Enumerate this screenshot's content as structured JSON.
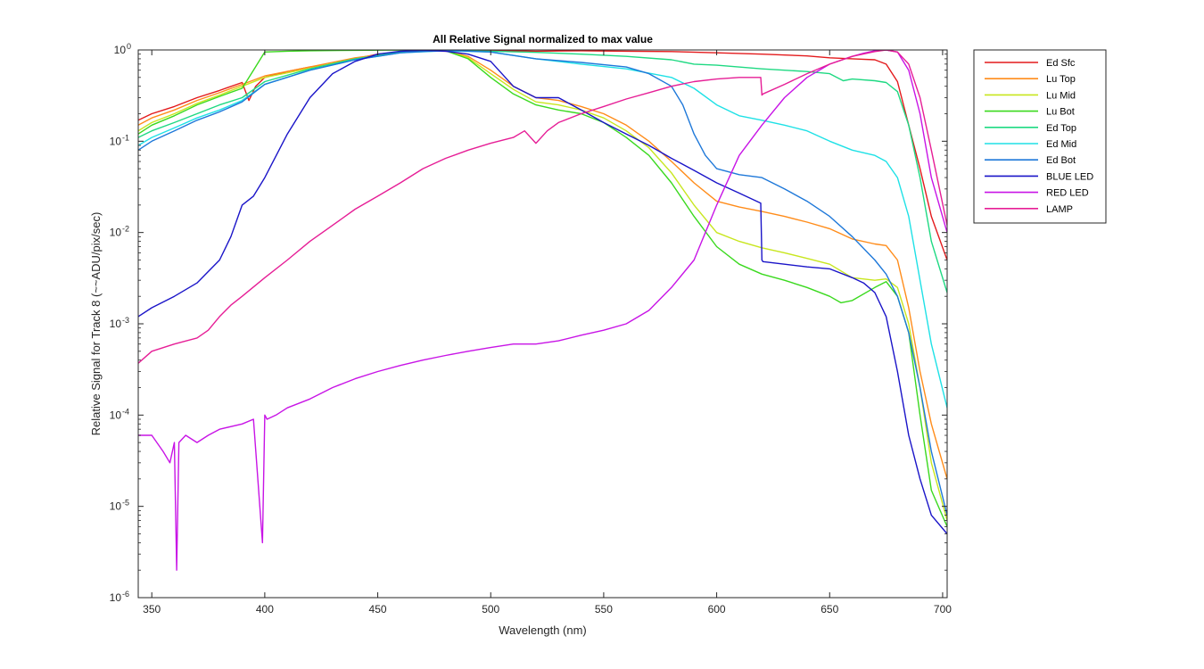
{
  "chart_data": {
    "type": "line",
    "title": "All Relative Signal normalized to max value",
    "xlabel": "Wavelength (nm)",
    "ylabel": "Relative Signal for Track 8 (~~ADU/pix/sec)",
    "xlim": [
      344,
      702
    ],
    "ylim": [
      1e-06,
      1
    ],
    "yscale": "log",
    "grid": false,
    "legend_position": "outside-right-top",
    "x_ticks": [
      350,
      400,
      450,
      500,
      550,
      600,
      650,
      700
    ],
    "y_ticks": [
      {
        "value": 1e-06,
        "mantissa": "10",
        "exp": "-6"
      },
      {
        "value": 1e-05,
        "mantissa": "10",
        "exp": "-5"
      },
      {
        "value": 0.0001,
        "mantissa": "10",
        "exp": "-4"
      },
      {
        "value": 0.001,
        "mantissa": "10",
        "exp": "-3"
      },
      {
        "value": 0.01,
        "mantissa": "10",
        "exp": "-2"
      },
      {
        "value": 0.1,
        "mantissa": "10",
        "exp": "-1"
      },
      {
        "value": 1,
        "mantissa": "10",
        "exp": "0"
      }
    ],
    "series": [
      {
        "name": "Ed Sfc",
        "color": "#e31a1c",
        "x": [
          344,
          350,
          360,
          370,
          380,
          390,
          393,
          396,
          400,
          410,
          420,
          430,
          440,
          450,
          460,
          470,
          480,
          490,
          500,
          520,
          540,
          560,
          580,
          600,
          620,
          640,
          650,
          660,
          670,
          675,
          680,
          685,
          690,
          695,
          702
        ],
        "y": [
          0.17,
          0.2,
          0.24,
          0.3,
          0.36,
          0.44,
          0.28,
          0.4,
          0.5,
          0.58,
          0.65,
          0.7,
          0.8,
          0.9,
          0.95,
          0.98,
          0.97,
          0.98,
          0.99,
          0.97,
          0.98,
          0.97,
          0.96,
          0.93,
          0.9,
          0.86,
          0.82,
          0.8,
          0.78,
          0.7,
          0.45,
          0.15,
          0.05,
          0.015,
          0.005
        ]
      },
      {
        "name": "Lu Top",
        "color": "#ff8c1a",
        "x": [
          344,
          350,
          360,
          370,
          380,
          390,
          400,
          420,
          440,
          460,
          480,
          490,
          500,
          510,
          520,
          530,
          540,
          550,
          560,
          570,
          580,
          590,
          600,
          610,
          620,
          630,
          640,
          650,
          660,
          670,
          675,
          680,
          685,
          690,
          695,
          702
        ],
        "y": [
          0.15,
          0.18,
          0.22,
          0.28,
          0.34,
          0.42,
          0.52,
          0.65,
          0.82,
          0.95,
          0.98,
          0.85,
          0.6,
          0.4,
          0.3,
          0.28,
          0.24,
          0.2,
          0.15,
          0.1,
          0.06,
          0.035,
          0.022,
          0.019,
          0.017,
          0.015,
          0.013,
          0.011,
          0.0085,
          0.0075,
          0.0072,
          0.005,
          0.0015,
          0.0003,
          8e-05,
          2e-05
        ]
      },
      {
        "name": "Lu Mid",
        "color": "#c8e61e",
        "x": [
          344,
          350,
          360,
          370,
          380,
          390,
          400,
          420,
          440,
          460,
          480,
          490,
          500,
          510,
          520,
          530,
          540,
          550,
          560,
          570,
          580,
          590,
          600,
          610,
          620,
          630,
          640,
          650,
          660,
          670,
          675,
          680,
          685,
          690,
          695,
          702
        ],
        "y": [
          0.13,
          0.16,
          0.2,
          0.26,
          0.32,
          0.4,
          0.5,
          0.63,
          0.8,
          0.95,
          0.98,
          0.82,
          0.55,
          0.37,
          0.27,
          0.25,
          0.22,
          0.18,
          0.13,
          0.085,
          0.045,
          0.02,
          0.01,
          0.008,
          0.0068,
          0.006,
          0.0052,
          0.0045,
          0.0032,
          0.003,
          0.0031,
          0.0025,
          0.001,
          0.0002,
          3e-05,
          7e-06
        ]
      },
      {
        "name": "Lu Bot",
        "color": "#3ad91e",
        "x": [
          344,
          350,
          360,
          370,
          380,
          390,
          395,
          400,
          410,
          420,
          440,
          460,
          480,
          490,
          500,
          510,
          520,
          530,
          540,
          550,
          560,
          570,
          580,
          590,
          600,
          610,
          620,
          630,
          640,
          650,
          655,
          660,
          670,
          675,
          680,
          685,
          690,
          695,
          702
        ],
        "y": [
          0.12,
          0.15,
          0.19,
          0.25,
          0.31,
          0.38,
          0.6,
          0.95,
          0.97,
          0.98,
          0.99,
          1.0,
          0.98,
          0.8,
          0.5,
          0.33,
          0.25,
          0.22,
          0.2,
          0.16,
          0.11,
          0.07,
          0.035,
          0.015,
          0.007,
          0.0045,
          0.0035,
          0.003,
          0.0025,
          0.002,
          0.0017,
          0.0018,
          0.0025,
          0.0029,
          0.002,
          0.0008,
          0.0001,
          1.5e-05,
          6e-06
        ]
      },
      {
        "name": "Ed Top",
        "color": "#1ed982",
        "x": [
          344,
          350,
          360,
          370,
          380,
          390,
          400,
          420,
          440,
          460,
          480,
          500,
          520,
          540,
          560,
          580,
          590,
          600,
          620,
          640,
          650,
          656,
          660,
          670,
          675,
          680,
          685,
          690,
          695,
          702
        ],
        "y": [
          0.11,
          0.13,
          0.16,
          0.2,
          0.25,
          0.3,
          0.45,
          0.62,
          0.8,
          0.95,
          0.98,
          0.97,
          0.94,
          0.9,
          0.85,
          0.78,
          0.7,
          0.68,
          0.62,
          0.58,
          0.55,
          0.46,
          0.48,
          0.46,
          0.44,
          0.35,
          0.15,
          0.04,
          0.008,
          0.0022
        ]
      },
      {
        "name": "Ed Mid",
        "color": "#1ee1e6",
        "x": [
          344,
          350,
          360,
          370,
          380,
          390,
          400,
          420,
          440,
          460,
          480,
          500,
          520,
          540,
          560,
          580,
          590,
          600,
          610,
          620,
          630,
          640,
          650,
          660,
          670,
          675,
          680,
          685,
          690,
          695,
          702
        ],
        "y": [
          0.09,
          0.11,
          0.14,
          0.18,
          0.22,
          0.28,
          0.42,
          0.6,
          0.78,
          0.93,
          0.98,
          0.95,
          0.8,
          0.7,
          0.62,
          0.5,
          0.38,
          0.25,
          0.19,
          0.17,
          0.15,
          0.13,
          0.1,
          0.08,
          0.07,
          0.06,
          0.04,
          0.015,
          0.003,
          0.0006,
          0.00012
        ]
      },
      {
        "name": "Ed Bot",
        "color": "#1e78d9",
        "x": [
          344,
          350,
          360,
          370,
          380,
          390,
          400,
          420,
          440,
          460,
          480,
          500,
          520,
          540,
          560,
          570,
          580,
          585,
          590,
          595,
          600,
          610,
          620,
          630,
          640,
          650,
          660,
          670,
          675,
          680,
          685,
          690,
          695,
          702
        ],
        "y": [
          0.08,
          0.1,
          0.13,
          0.17,
          0.21,
          0.27,
          0.42,
          0.6,
          0.78,
          0.93,
          0.99,
          0.95,
          0.8,
          0.73,
          0.65,
          0.55,
          0.4,
          0.25,
          0.12,
          0.07,
          0.05,
          0.043,
          0.04,
          0.03,
          0.022,
          0.015,
          0.009,
          0.005,
          0.0035,
          0.002,
          0.0008,
          0.0002,
          4e-05,
          8e-06
        ]
      },
      {
        "name": "BLUE LED",
        "color": "#1a14c8",
        "x": [
          344,
          350,
          360,
          370,
          380,
          385,
          390,
          395,
          400,
          410,
          420,
          430,
          440,
          450,
          460,
          470,
          480,
          490,
          500,
          510,
          520,
          530,
          540,
          550,
          560,
          570,
          580,
          590,
          600,
          610,
          619.5,
          620,
          620.5,
          630,
          640,
          650,
          660,
          665,
          670,
          675,
          680,
          685,
          690,
          695,
          702
        ],
        "y": [
          0.0012,
          0.0015,
          0.002,
          0.0028,
          0.005,
          0.009,
          0.02,
          0.025,
          0.04,
          0.12,
          0.3,
          0.55,
          0.75,
          0.9,
          0.97,
          0.99,
          0.97,
          0.9,
          0.75,
          0.4,
          0.3,
          0.3,
          0.22,
          0.16,
          0.12,
          0.09,
          0.065,
          0.048,
          0.035,
          0.027,
          0.021,
          0.005,
          0.0048,
          0.0045,
          0.0042,
          0.004,
          0.0032,
          0.0028,
          0.0022,
          0.0012,
          0.0003,
          6e-05,
          2e-05,
          8e-06,
          5e-06
        ]
      },
      {
        "name": "RED LED",
        "color": "#c814e6",
        "x": [
          344,
          350,
          355,
          358,
          360,
          361,
          362,
          365,
          370,
          375,
          380,
          390,
          395,
          399,
          400,
          401,
          405,
          410,
          420,
          430,
          440,
          450,
          460,
          470,
          480,
          490,
          500,
          510,
          520,
          530,
          540,
          550,
          560,
          570,
          580,
          590,
          600,
          610,
          620,
          630,
          640,
          650,
          660,
          665,
          670,
          675,
          680,
          685,
          690,
          695,
          702
        ],
        "y": [
          6e-05,
          6e-05,
          4e-05,
          3e-05,
          5e-05,
          2e-06,
          5e-05,
          6e-05,
          5e-05,
          6e-05,
          7e-05,
          8e-05,
          9e-05,
          4e-06,
          0.0001,
          9e-05,
          0.0001,
          0.00012,
          0.00015,
          0.0002,
          0.00025,
          0.0003,
          0.00035,
          0.0004,
          0.00045,
          0.0005,
          0.00055,
          0.0006,
          0.0006,
          0.00065,
          0.00075,
          0.00085,
          0.001,
          0.0014,
          0.0025,
          0.005,
          0.02,
          0.07,
          0.15,
          0.3,
          0.5,
          0.7,
          0.85,
          0.92,
          0.98,
          1.0,
          0.95,
          0.6,
          0.2,
          0.04,
          0.01
        ]
      },
      {
        "name": "LAMP",
        "color": "#e61e96",
        "x": [
          344,
          350,
          360,
          370,
          375,
          380,
          385,
          390,
          400,
          410,
          420,
          430,
          440,
          450,
          460,
          470,
          480,
          490,
          500,
          510,
          515,
          520,
          525,
          530,
          540,
          550,
          560,
          570,
          580,
          590,
          600,
          610,
          619.5,
          620,
          620.5,
          630,
          640,
          650,
          660,
          670,
          675,
          680,
          685,
          690,
          695,
          702
        ],
        "y": [
          0.00037,
          0.0005,
          0.0006,
          0.0007,
          0.00085,
          0.0012,
          0.0016,
          0.002,
          0.0032,
          0.005,
          0.008,
          0.012,
          0.018,
          0.025,
          0.035,
          0.05,
          0.065,
          0.08,
          0.095,
          0.11,
          0.13,
          0.095,
          0.13,
          0.16,
          0.2,
          0.24,
          0.29,
          0.34,
          0.4,
          0.45,
          0.48,
          0.5,
          0.5,
          0.32,
          0.33,
          0.42,
          0.55,
          0.7,
          0.85,
          0.96,
          1.0,
          0.95,
          0.7,
          0.3,
          0.08,
          0.012
        ]
      }
    ]
  }
}
